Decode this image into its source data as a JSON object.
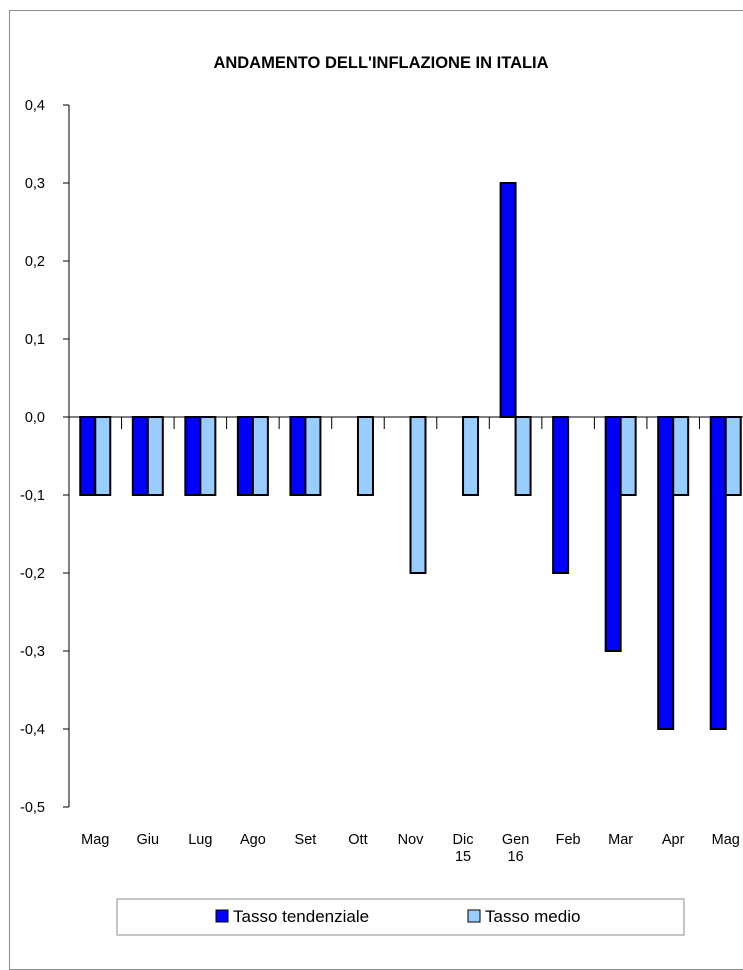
{
  "chart_data": {
    "type": "bar",
    "title": "ANDAMENTO DELL'INFLAZIONE IN ITALIA",
    "xlabel": "",
    "ylabel": "",
    "categories": [
      [
        "Mag"
      ],
      [
        "Giu"
      ],
      [
        "Lug"
      ],
      [
        "Ago"
      ],
      [
        "Set"
      ],
      [
        "Ott"
      ],
      [
        "Nov"
      ],
      [
        "Dic",
        "15"
      ],
      [
        "Gen",
        "16"
      ],
      [
        "Feb"
      ],
      [
        "Mar"
      ],
      [
        "Apr"
      ],
      [
        "Mag"
      ]
    ],
    "series": [
      {
        "name": "Tasso tendenziale",
        "color": "#0000ff",
        "values": [
          -0.1,
          -0.1,
          -0.1,
          -0.1,
          -0.1,
          0.0,
          0.0,
          0.0,
          0.3,
          -0.2,
          -0.3,
          -0.4,
          -0.4
        ]
      },
      {
        "name": "Tasso medio",
        "color": "#99ccff",
        "values": [
          -0.1,
          -0.1,
          -0.1,
          -0.1,
          -0.1,
          -0.1,
          -0.2,
          -0.1,
          -0.1,
          0.0,
          -0.1,
          -0.1,
          -0.1
        ]
      }
    ],
    "ylim": [
      -0.5,
      0.4
    ],
    "yticks": [
      "0,4",
      "0,3",
      "0,2",
      "0,1",
      "0,0",
      "-0,1",
      "-0,2",
      "-0,3",
      "-0,4",
      "-0,5"
    ],
    "ytick_values": [
      0.4,
      0.3,
      0.2,
      0.1,
      0.0,
      -0.1,
      -0.2,
      -0.3,
      -0.4,
      -0.5
    ],
    "grid": false,
    "legend_position": "bottom",
    "border_color": "#000000"
  }
}
